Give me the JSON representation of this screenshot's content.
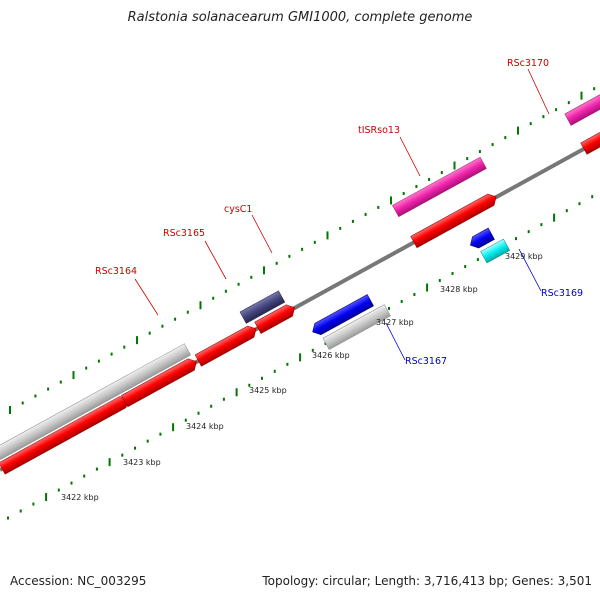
{
  "title": "Ralstonia solanacearum GMI1000, complete genome",
  "footer": {
    "accession": "Accession: NC_003295",
    "summary": "Topology: circular; Length: 3,716,413 bp; Genes: 3,501"
  },
  "colors": {
    "forward_cds": "#ff0000",
    "reverse_cds": "#0000ee",
    "other_feature": "#c8c8c8",
    "rna": "#ee22aa",
    "dark_feature": "#44447f",
    "small_feature": "#00eeee",
    "forward_label": "#cc0000",
    "reverse_label": "#0000cc",
    "tick_mark": "#007700",
    "backbone": "#777777"
  },
  "tick_labels": [
    {
      "label": "3422 kbp"
    },
    {
      "label": "3423 kbp"
    },
    {
      "label": "3424 kbp"
    },
    {
      "label": "3425 kbp"
    },
    {
      "label": "3426 kbp"
    },
    {
      "label": "3427 kbp"
    },
    {
      "label": "3428 kbp"
    },
    {
      "label": "3429 kbp"
    }
  ],
  "gene_labels": [
    {
      "name": "RSc3164",
      "strand": "forward"
    },
    {
      "name": "RSc3165",
      "strand": "forward"
    },
    {
      "name": "cysC1",
      "strand": "forward"
    },
    {
      "name": "tISRso13",
      "strand": "forward"
    },
    {
      "name": "RSc3170",
      "strand": "forward"
    },
    {
      "name": "RSc3167",
      "strand": "reverse"
    },
    {
      "name": "RSc3169",
      "strand": "reverse"
    }
  ]
}
